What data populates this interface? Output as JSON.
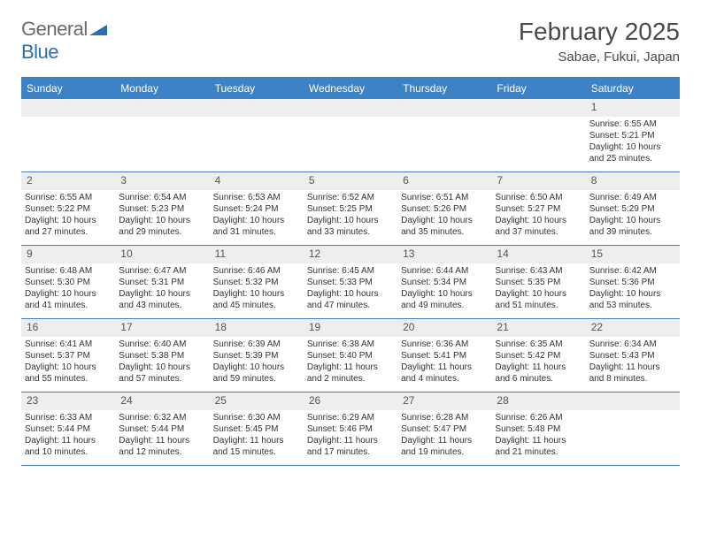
{
  "brand": {
    "part1": "General",
    "part2": "Blue"
  },
  "title": "February 2025",
  "location": "Sabae, Fukui, Japan",
  "colors": {
    "header_bar": "#3d82c4",
    "rule": "#4a7db5",
    "daynum_bg": "#eeeeee",
    "text": "#333333",
    "brand_gray": "#6b6b6b",
    "brand_blue": "#2c6fb0",
    "background": "#ffffff"
  },
  "dow": [
    "Sunday",
    "Monday",
    "Tuesday",
    "Wednesday",
    "Thursday",
    "Friday",
    "Saturday"
  ],
  "weeks": [
    [
      {
        "day": null
      },
      {
        "day": null
      },
      {
        "day": null
      },
      {
        "day": null
      },
      {
        "day": null
      },
      {
        "day": null
      },
      {
        "day": 1,
        "sunrise": "Sunrise: 6:55 AM",
        "sunset": "Sunset: 5:21 PM",
        "daylight": "Daylight: 10 hours and 25 minutes."
      }
    ],
    [
      {
        "day": 2,
        "sunrise": "Sunrise: 6:55 AM",
        "sunset": "Sunset: 5:22 PM",
        "daylight": "Daylight: 10 hours and 27 minutes."
      },
      {
        "day": 3,
        "sunrise": "Sunrise: 6:54 AM",
        "sunset": "Sunset: 5:23 PM",
        "daylight": "Daylight: 10 hours and 29 minutes."
      },
      {
        "day": 4,
        "sunrise": "Sunrise: 6:53 AM",
        "sunset": "Sunset: 5:24 PM",
        "daylight": "Daylight: 10 hours and 31 minutes."
      },
      {
        "day": 5,
        "sunrise": "Sunrise: 6:52 AM",
        "sunset": "Sunset: 5:25 PM",
        "daylight": "Daylight: 10 hours and 33 minutes."
      },
      {
        "day": 6,
        "sunrise": "Sunrise: 6:51 AM",
        "sunset": "Sunset: 5:26 PM",
        "daylight": "Daylight: 10 hours and 35 minutes."
      },
      {
        "day": 7,
        "sunrise": "Sunrise: 6:50 AM",
        "sunset": "Sunset: 5:27 PM",
        "daylight": "Daylight: 10 hours and 37 minutes."
      },
      {
        "day": 8,
        "sunrise": "Sunrise: 6:49 AM",
        "sunset": "Sunset: 5:29 PM",
        "daylight": "Daylight: 10 hours and 39 minutes."
      }
    ],
    [
      {
        "day": 9,
        "sunrise": "Sunrise: 6:48 AM",
        "sunset": "Sunset: 5:30 PM",
        "daylight": "Daylight: 10 hours and 41 minutes."
      },
      {
        "day": 10,
        "sunrise": "Sunrise: 6:47 AM",
        "sunset": "Sunset: 5:31 PM",
        "daylight": "Daylight: 10 hours and 43 minutes."
      },
      {
        "day": 11,
        "sunrise": "Sunrise: 6:46 AM",
        "sunset": "Sunset: 5:32 PM",
        "daylight": "Daylight: 10 hours and 45 minutes."
      },
      {
        "day": 12,
        "sunrise": "Sunrise: 6:45 AM",
        "sunset": "Sunset: 5:33 PM",
        "daylight": "Daylight: 10 hours and 47 minutes."
      },
      {
        "day": 13,
        "sunrise": "Sunrise: 6:44 AM",
        "sunset": "Sunset: 5:34 PM",
        "daylight": "Daylight: 10 hours and 49 minutes."
      },
      {
        "day": 14,
        "sunrise": "Sunrise: 6:43 AM",
        "sunset": "Sunset: 5:35 PM",
        "daylight": "Daylight: 10 hours and 51 minutes."
      },
      {
        "day": 15,
        "sunrise": "Sunrise: 6:42 AM",
        "sunset": "Sunset: 5:36 PM",
        "daylight": "Daylight: 10 hours and 53 minutes."
      }
    ],
    [
      {
        "day": 16,
        "sunrise": "Sunrise: 6:41 AM",
        "sunset": "Sunset: 5:37 PM",
        "daylight": "Daylight: 10 hours and 55 minutes."
      },
      {
        "day": 17,
        "sunrise": "Sunrise: 6:40 AM",
        "sunset": "Sunset: 5:38 PM",
        "daylight": "Daylight: 10 hours and 57 minutes."
      },
      {
        "day": 18,
        "sunrise": "Sunrise: 6:39 AM",
        "sunset": "Sunset: 5:39 PM",
        "daylight": "Daylight: 10 hours and 59 minutes."
      },
      {
        "day": 19,
        "sunrise": "Sunrise: 6:38 AM",
        "sunset": "Sunset: 5:40 PM",
        "daylight": "Daylight: 11 hours and 2 minutes."
      },
      {
        "day": 20,
        "sunrise": "Sunrise: 6:36 AM",
        "sunset": "Sunset: 5:41 PM",
        "daylight": "Daylight: 11 hours and 4 minutes."
      },
      {
        "day": 21,
        "sunrise": "Sunrise: 6:35 AM",
        "sunset": "Sunset: 5:42 PM",
        "daylight": "Daylight: 11 hours and 6 minutes."
      },
      {
        "day": 22,
        "sunrise": "Sunrise: 6:34 AM",
        "sunset": "Sunset: 5:43 PM",
        "daylight": "Daylight: 11 hours and 8 minutes."
      }
    ],
    [
      {
        "day": 23,
        "sunrise": "Sunrise: 6:33 AM",
        "sunset": "Sunset: 5:44 PM",
        "daylight": "Daylight: 11 hours and 10 minutes."
      },
      {
        "day": 24,
        "sunrise": "Sunrise: 6:32 AM",
        "sunset": "Sunset: 5:44 PM",
        "daylight": "Daylight: 11 hours and 12 minutes."
      },
      {
        "day": 25,
        "sunrise": "Sunrise: 6:30 AM",
        "sunset": "Sunset: 5:45 PM",
        "daylight": "Daylight: 11 hours and 15 minutes."
      },
      {
        "day": 26,
        "sunrise": "Sunrise: 6:29 AM",
        "sunset": "Sunset: 5:46 PM",
        "daylight": "Daylight: 11 hours and 17 minutes."
      },
      {
        "day": 27,
        "sunrise": "Sunrise: 6:28 AM",
        "sunset": "Sunset: 5:47 PM",
        "daylight": "Daylight: 11 hours and 19 minutes."
      },
      {
        "day": 28,
        "sunrise": "Sunrise: 6:26 AM",
        "sunset": "Sunset: 5:48 PM",
        "daylight": "Daylight: 11 hours and 21 minutes."
      },
      {
        "day": null
      }
    ]
  ]
}
